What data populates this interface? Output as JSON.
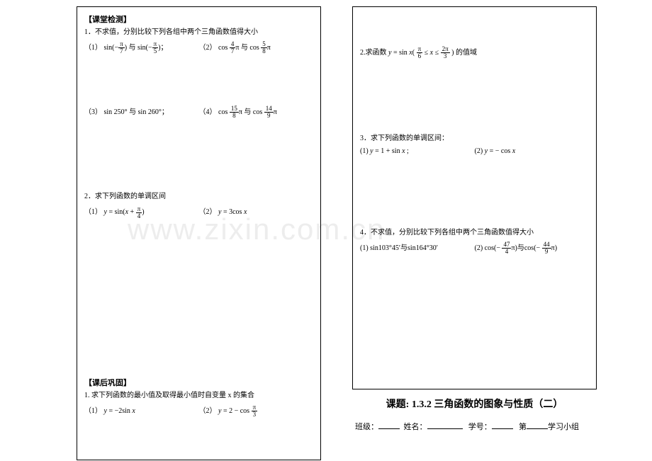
{
  "watermark": "www.zixin.com.cn",
  "left": {
    "section1_title": "【课堂检测】",
    "p1": "1．不求值，分别比较下列各组中两个三角函数值得大小",
    "p1a_label": "（1）",
    "p1a_html": "sin(−<span class='frac'><span class='num'>π</span><span class='den'>7</span></span>) 与 sin(−<span class='frac'><span class='num'>π</span><span class='den'>5</span></span>)；",
    "p1b_label": "（2）",
    "p1b_html": "cos <span class='frac'><span class='num'>4</span><span class='den'>7</span></span>π 与 cos <span class='frac'><span class='num'>5</span><span class='den'>8</span></span>π",
    "p1c_label": "（3）",
    "p1c_html": "sin 250° 与 sin 260°；",
    "p1d_label": "（4）",
    "p1d_html": "cos <span class='frac'><span class='num'>15</span><span class='den'>8</span></span>π 与 cos <span class='frac'><span class='num'>14</span><span class='den'>9</span></span>π",
    "p2": "2．求下列函数的单调区间",
    "p2a_label": "（1）",
    "p2a_html": "<span class='ital'>y</span> = sin(<span class='ital'>x</span> + <span class='frac'><span class='num'>π</span><span class='den'>4</span></span>)",
    "p2b_label": "（2）",
    "p2b_html": "<span class='ital'>y</span> = 3cos <span class='ital'>x</span>",
    "section2_title": "【课后巩固】",
    "p3": "1. 求下列函数的最小值及取得最小值时自变量 x 的集合",
    "p3a_label": "（1）",
    "p3a_html": "<span class='ital'>y</span> = −2sin <span class='ital'>x</span>",
    "p3b_label": "（2）",
    "p3b_html": "<span class='ital'>y</span> = 2 − cos <span class='frac'><span class='num'>π</span><span class='den'>3</span></span>"
  },
  "right": {
    "p1": "2.求函数",
    "p1_html": "<span class='ital'>y</span> = sin <span class='ital'>x</span>( <span class='frac'><span class='num'>π</span><span class='den'>6</span></span> ≤ <span class='ital'>x</span> ≤ <span class='frac'><span class='num'>2π</span><span class='den'>3</span></span> ) 的值域",
    "p2": "3．求下列函数的单调区间：",
    "p2a_label": "(1)",
    "p2a_html": "<span class='ital'>y</span> = 1 + sin <span class='ital'>x</span> ;",
    "p2b_label": "(2)",
    "p2b_html": "<span class='ital'>y</span> = − cos <span class='ital'>x</span>",
    "p3": "4．不求值，分别比较下列各组中两个三角函数值得大小",
    "p3a_label": "(1)",
    "p3a_html": "sin103°45′与sin164°30′",
    "p3b_label": "(2)",
    "p3b_html": "cos(− <span class='frac'><span class='num'>47</span><span class='den'>4</span></span>π)与cos(− <span class='frac'><span class='num'>44</span><span class='den'>9</span></span>π)"
  },
  "footer": {
    "lesson": "课题: 1.3.2 三角函数的图象与性质（二）",
    "class_label": "班级：",
    "name_label": "姓名：",
    "id_label": "学号：",
    "group_prefix": "第",
    "group_suffix": "学习小组"
  }
}
